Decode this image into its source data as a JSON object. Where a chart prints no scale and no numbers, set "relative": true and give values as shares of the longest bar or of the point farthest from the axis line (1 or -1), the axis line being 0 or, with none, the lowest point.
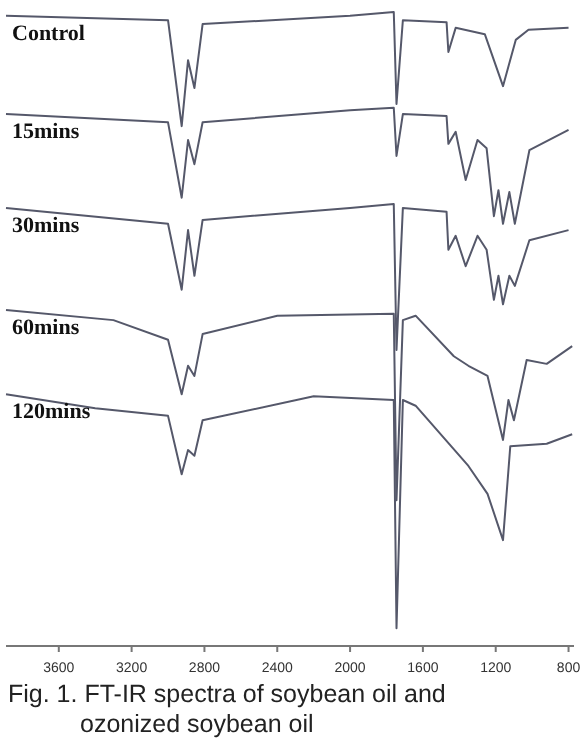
{
  "chart_data": {
    "type": "line",
    "relative": true,
    "xlim": [
      3890,
      770
    ],
    "xticks": [
      3600,
      3200,
      2800,
      2400,
      2000,
      1600,
      1200,
      800
    ],
    "annotations": [
      "Fig. 1. FT-IR spectra of soybean oil and ozonized soybean oil"
    ],
    "grid": false,
    "marker": "none",
    "line_style": "solid",
    "series": [
      {
        "name": "Control",
        "color": "#55586a",
        "x": [
          3890,
          3000,
          2925,
          2890,
          2855,
          2810,
          2000,
          1760,
          1745,
          1710,
          1470,
          1460,
          1420,
          1260,
          1160,
          1090,
          1020,
          800
        ],
        "values": [
          0.994,
          0.987,
          0.82,
          0.924,
          0.88,
          0.981,
          0.994,
          1,
          0.855,
          0.987,
          0.984,
          0.937,
          0.975,
          0.965,
          0.883,
          0.956,
          0.972,
          0.975
        ]
      },
      {
        "name": "15mins",
        "color": "#55586a",
        "x": [
          3890,
          3000,
          2925,
          2890,
          2855,
          2810,
          2000,
          1760,
          1745,
          1710,
          1470,
          1460,
          1420,
          1365,
          1300,
          1250,
          1210,
          1185,
          1160,
          1125,
          1095,
          1015,
          800
        ],
        "values": [
          0.839,
          0.826,
          0.707,
          0.798,
          0.76,
          0.826,
          0.845,
          0.849,
          0.773,
          0.839,
          0.836,
          0.792,
          0.811,
          0.735,
          0.798,
          0.785,
          0.678,
          0.719,
          0.666,
          0.716,
          0.666,
          0.782,
          0.814
        ]
      },
      {
        "name": "30mins",
        "color": "#55586a",
        "x": [
          3890,
          3000,
          2925,
          2890,
          2855,
          2810,
          2000,
          1760,
          1745,
          1710,
          1470,
          1460,
          1420,
          1365,
          1300,
          1250,
          1210,
          1185,
          1160,
          1125,
          1095,
          1015,
          800
        ],
        "values": [
          0.691,
          0.666,
          0.562,
          0.656,
          0.584,
          0.672,
          0.691,
          0.697,
          0.467,
          0.691,
          0.685,
          0.625,
          0.647,
          0.599,
          0.647,
          0.625,
          0.546,
          0.584,
          0.539,
          0.584,
          0.568,
          0.64,
          0.656
        ]
      },
      {
        "name": "60mins",
        "color": "#55586a",
        "x": [
          3890,
          3300,
          3000,
          2925,
          2890,
          2855,
          2810,
          2400,
          1760,
          1745,
          1710,
          1640,
          1430,
          1350,
          1245,
          1160,
          1130,
          1100,
          1030,
          920,
          780
        ],
        "values": [
          0.53,
          0.514,
          0.483,
          0.397,
          0.442,
          0.426,
          0.492,
          0.521,
          0.524,
          0.23,
          0.514,
          0.521,
          0.457,
          0.442,
          0.426,
          0.325,
          0.388,
          0.356,
          0.451,
          0.445,
          0.473
        ]
      },
      {
        "name": "120mins",
        "color": "#55586a",
        "x": [
          3890,
          3400,
          3000,
          2925,
          2890,
          2855,
          2810,
          2200,
          1760,
          1745,
          1710,
          1640,
          1350,
          1245,
          1160,
          1120,
          920,
          780
        ],
        "values": [
          0.397,
          0.375,
          0.363,
          0.271,
          0.309,
          0.3,
          0.356,
          0.394,
          0.388,
          0.028,
          0.388,
          0.379,
          0.284,
          0.24,
          0.167,
          0.315,
          0.319,
          0.334
        ]
      }
    ]
  }
}
